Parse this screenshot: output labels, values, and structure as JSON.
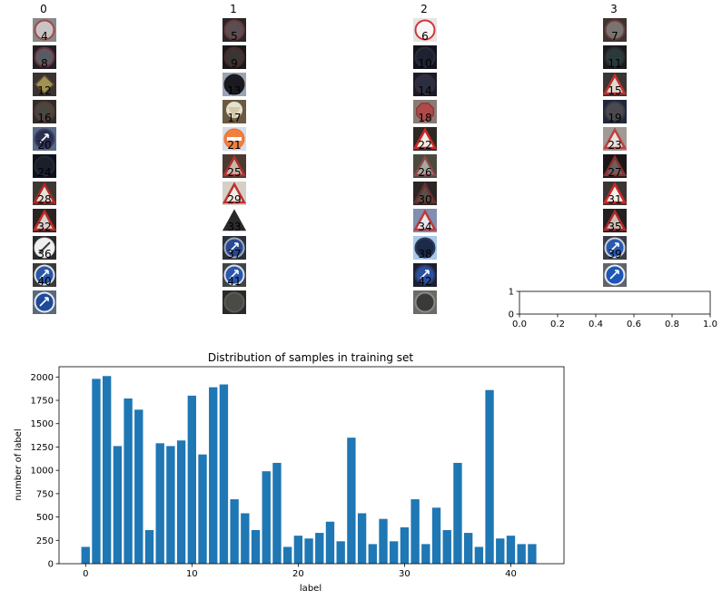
{
  "thumbnail_grid": {
    "column_titles": [
      "0",
      "1",
      "2",
      "3"
    ],
    "columns": [
      [
        {
          "label": "4",
          "sign": "speed-limit",
          "bg": "#8a8888",
          "fg": "#c9c3c3",
          "ring": "#9a4b4b"
        },
        {
          "label": "8",
          "sign": "speed-limit",
          "bg": "#1f1f24",
          "fg": "#5a5a64",
          "ring": "#6b2d3a"
        },
        {
          "label": "12",
          "sign": "priority-diamond",
          "bg": "#3a3330",
          "fg": "#a09250",
          "ring": "#5a4a3a"
        },
        {
          "label": "16",
          "sign": "circle-dim",
          "bg": "#2f2d2a",
          "fg": "#4a4640",
          "ring": "#5a3a35"
        },
        {
          "label": "20",
          "sign": "circle-blue",
          "bg": "#5a6a86",
          "fg": "#2a2f50",
          "ring": "#3a4064"
        },
        {
          "label": "24",
          "sign": "circle-dim",
          "bg": "#0e121a",
          "fg": "#1a1f2a",
          "ring": "#222a36"
        },
        {
          "label": "28",
          "sign": "warning-triangle",
          "bg": "#3e3832",
          "fg": "#e6e0d6",
          "ring": "#b02828"
        },
        {
          "label": "32",
          "sign": "warning-triangle",
          "bg": "#2c2424",
          "fg": "#d8d2cc",
          "ring": "#c02a2a"
        },
        {
          "label": "36",
          "sign": "end-restriction",
          "bg": "#2a2a2a",
          "fg": "#f0f0f0",
          "ring": "#d8d8d8"
        },
        {
          "label": "40",
          "sign": "circle-blue",
          "bg": "#3a3a3a",
          "fg": "#2a58a8",
          "ring": "#e0e0e8"
        },
        {
          "label": "",
          "sign": "roundabout",
          "bg": "#5a6a78",
          "fg": "#1e4a9a",
          "ring": "#e8e8f0"
        }
      ],
      [
        {
          "label": "5",
          "sign": "speed-limit",
          "bg": "#2a2628",
          "fg": "#5a4e52",
          "ring": "#6a3838"
        },
        {
          "label": "9",
          "sign": "circle-dim",
          "bg": "#1a1818",
          "fg": "#3a3434",
          "ring": "#4a2828"
        },
        {
          "label": "13",
          "sign": "circle-dark",
          "bg": "#9aa4b4",
          "fg": "#1a1a20",
          "ring": "#1a1a20"
        },
        {
          "label": "17",
          "sign": "bright-glare",
          "bg": "#6a5a40",
          "fg": "#f4f0e0",
          "ring": "#c8b890"
        },
        {
          "label": "21",
          "sign": "no-entry",
          "bg": "#d8dce4",
          "fg": "#f08040",
          "ring": "#e86a30"
        },
        {
          "label": "25",
          "sign": "warning-triangle",
          "bg": "#4a3a30",
          "fg": "#c8b8a8",
          "ring": "#b03030"
        },
        {
          "label": "29",
          "sign": "warning-triangle",
          "bg": "#d6cfc6",
          "fg": "#f0ece6",
          "ring": "#c03030"
        },
        {
          "label": "33",
          "sign": "dark-arrow",
          "bg": "#ffffff",
          "fg": "#2a2a2a",
          "ring": "#2a2a2a"
        },
        {
          "label": "37",
          "sign": "circle-blue",
          "bg": "#2a3038",
          "fg": "#2a4a90",
          "ring": "#a0a8c0"
        },
        {
          "label": "41",
          "sign": "circle-blue",
          "bg": "#404446",
          "fg": "#2a58b0",
          "ring": "#dce0ea"
        },
        {
          "label": "",
          "sign": "circle-dim",
          "bg": "#2a2a28",
          "fg": "#4a4a46",
          "ring": "#5a5a56"
        }
      ],
      [
        {
          "label": "6",
          "sign": "speed-limit",
          "bg": "#e8e4e4",
          "fg": "#f8f6f6",
          "ring": "#d03838"
        },
        {
          "label": "10",
          "sign": "circle-dim",
          "bg": "#12141c",
          "fg": "#1e2230",
          "ring": "#2a2e3c"
        },
        {
          "label": "14",
          "sign": "circle-dim",
          "bg": "#1a1c28",
          "fg": "#2a2e40",
          "ring": "#3a2a38"
        },
        {
          "label": "18",
          "sign": "stop",
          "bg": "#8a7a74",
          "fg": "#b04a4a",
          "ring": "#7a2a2a"
        },
        {
          "label": "22",
          "sign": "warning-triangle",
          "bg": "#2e2824",
          "fg": "#f0ece6",
          "ring": "#d02828"
        },
        {
          "label": "26",
          "sign": "warning-triangle",
          "bg": "#4a4a3e",
          "fg": "#a8a8a0",
          "ring": "#8a4a4a"
        },
        {
          "label": "30",
          "sign": "warning-triangle",
          "bg": "#2a2624",
          "fg": "#5a4e48",
          "ring": "#6a3030"
        },
        {
          "label": "34",
          "sign": "warning-triangle",
          "bg": "#8090b0",
          "fg": "#e8e8f0",
          "ring": "#c03838"
        },
        {
          "label": "38",
          "sign": "circle-dark",
          "bg": "#a8c8e8",
          "fg": "#1a2a48",
          "ring": "#2a3a58"
        },
        {
          "label": "42",
          "sign": "circle-blue",
          "bg": "#1a2030",
          "fg": "#2a50a0",
          "ring": "#2a3a60"
        },
        {
          "label": "",
          "sign": "circle-dim",
          "bg": "#6a6a66",
          "fg": "#3a3a38",
          "ring": "#8a8a86"
        }
      ],
      [
        {
          "label": "7",
          "sign": "speed-limit",
          "bg": "#3a3432",
          "fg": "#7a7470",
          "ring": "#6a3a38"
        },
        {
          "label": "11",
          "sign": "circle-dim",
          "bg": "#181a1c",
          "fg": "#2a3a3a",
          "ring": "#2a2a2e"
        },
        {
          "label": "15",
          "sign": "warning-triangle",
          "bg": "#3a3432",
          "fg": "#e0d8d0",
          "ring": "#c03030"
        },
        {
          "label": "19",
          "sign": "circle-dim",
          "bg": "#20283a",
          "fg": "#4a4a4e",
          "ring": "#3a3a48"
        },
        {
          "label": "23",
          "sign": "warning-triangle",
          "bg": "#a09a96",
          "fg": "#e8e4e0",
          "ring": "#c04040"
        },
        {
          "label": "27",
          "sign": "warning-triangle",
          "bg": "#1a1616",
          "fg": "#6a6060",
          "ring": "#8a3030"
        },
        {
          "label": "31",
          "sign": "warning-triangle",
          "bg": "#3a3634",
          "fg": "#f4f0ec",
          "ring": "#d02828"
        },
        {
          "label": "35",
          "sign": "warning-triangle",
          "bg": "#242020",
          "fg": "#c8c0b8",
          "ring": "#b02828"
        },
        {
          "label": "39",
          "sign": "circle-blue",
          "bg": "#3a3e44",
          "fg": "#2a5ab0",
          "ring": "#c8cee0"
        },
        {
          "label": "",
          "sign": "circle-blue",
          "bg": "#606468",
          "fg": "#1e56b8",
          "ring": "#e6eaf2"
        }
      ]
    ]
  },
  "empty_axes": {
    "x_ticks": [
      "0.0",
      "0.2",
      "0.4",
      "0.6",
      "0.8",
      "1.0"
    ],
    "y_ticks": [
      "0",
      "1"
    ]
  },
  "chart_data": {
    "type": "bar",
    "title": "Distribution of samples in training set",
    "xlabel": "label",
    "ylabel": "number of label",
    "color": "#1f77b4",
    "xlim": [
      -2.5,
      45
    ],
    "ylim": [
      0,
      2110
    ],
    "x_ticks": [
      0,
      10,
      20,
      30,
      40
    ],
    "y_ticks": [
      0,
      250,
      500,
      750,
      1000,
      1250,
      1500,
      1750,
      2000
    ],
    "categories": [
      0,
      1,
      2,
      3,
      4,
      5,
      6,
      7,
      8,
      9,
      10,
      11,
      12,
      13,
      14,
      15,
      16,
      17,
      18,
      19,
      20,
      21,
      22,
      23,
      24,
      25,
      26,
      27,
      28,
      29,
      30,
      31,
      32,
      33,
      34,
      35,
      36,
      37,
      38,
      39,
      40,
      41,
      42
    ],
    "values": [
      180,
      1980,
      2010,
      1260,
      1770,
      1650,
      360,
      1290,
      1260,
      1320,
      1800,
      1170,
      1890,
      1920,
      690,
      540,
      360,
      990,
      1080,
      180,
      300,
      270,
      330,
      450,
      240,
      1350,
      540,
      210,
      480,
      240,
      390,
      690,
      210,
      600,
      360,
      1080,
      330,
      180,
      1860,
      270,
      300,
      210,
      210
    ]
  }
}
